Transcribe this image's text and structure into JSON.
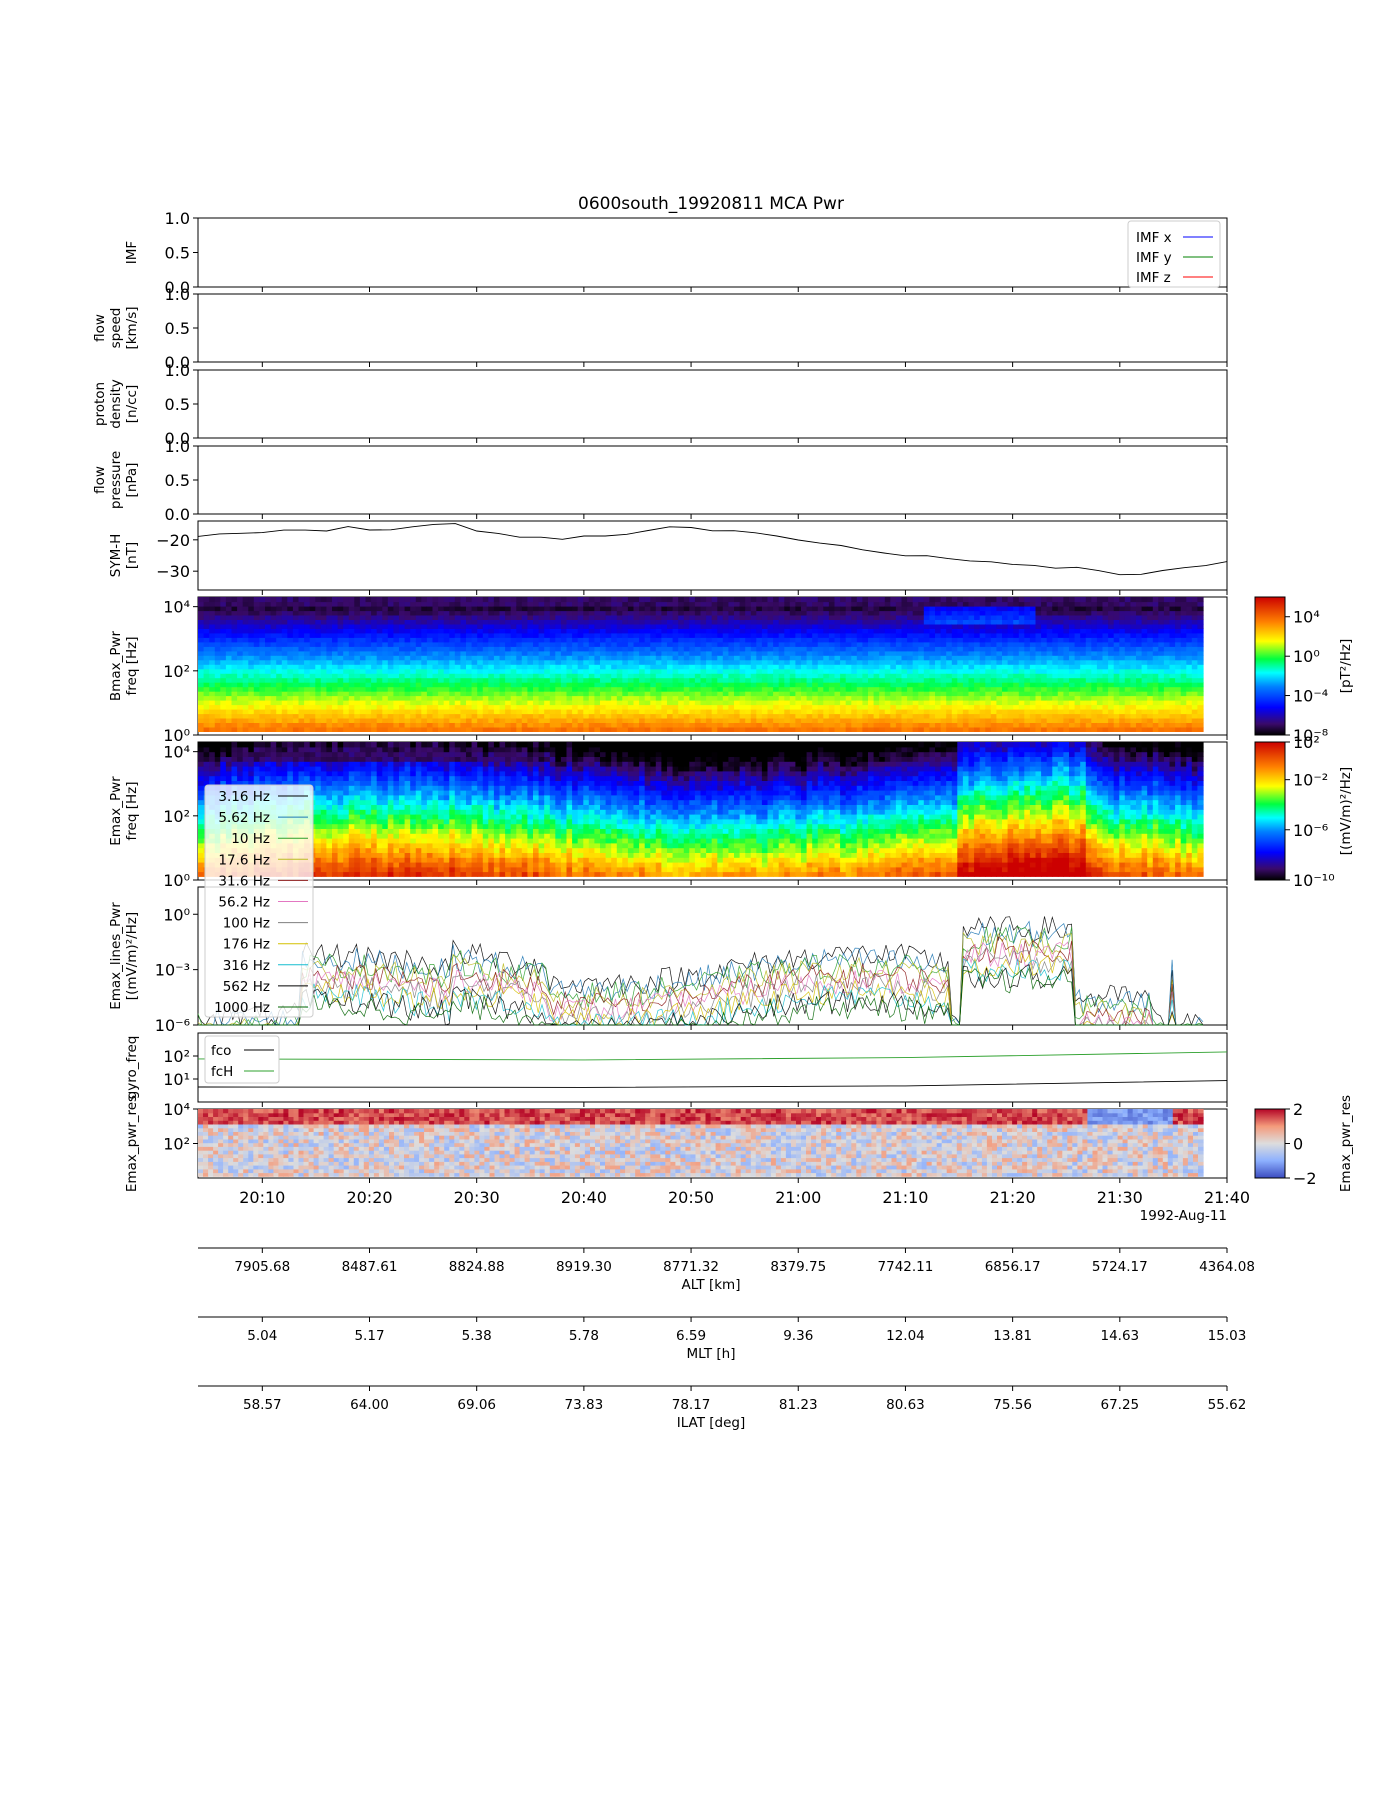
{
  "figure": {
    "title": "0600south_19920811 MCA Pwr",
    "date_label": "1992-Aug-11"
  },
  "chart_data": [
    {
      "type": "line",
      "panel": "IMF",
      "ylabel": [
        "IMF"
      ],
      "ylim": [
        0.0,
        1.0
      ],
      "yticks": [
        "0.0",
        "0.5",
        "1.0"
      ],
      "legend": "top-right",
      "series": [
        {
          "name": "IMF x",
          "color": "#0000ff",
          "values": []
        },
        {
          "name": "IMF y",
          "color": "#008000",
          "values": []
        },
        {
          "name": "IMF z",
          "color": "#ff0000",
          "values": []
        }
      ]
    },
    {
      "type": "line",
      "panel": "flow speed",
      "ylabel": [
        "flow",
        "speed",
        "[km/s]"
      ],
      "ylim": [
        0.0,
        1.0
      ],
      "yticks": [
        "0.0",
        "0.5",
        "1.0"
      ],
      "series": []
    },
    {
      "type": "line",
      "panel": "proton density",
      "ylabel": [
        "proton",
        "density",
        "[n/cc]"
      ],
      "ylim": [
        0.0,
        1.0
      ],
      "yticks": [
        "0.0",
        "0.5",
        "1.0"
      ],
      "series": []
    },
    {
      "type": "line",
      "panel": "flow pressure",
      "ylabel": [
        "flow",
        "pressure",
        "[nPa]"
      ],
      "ylim": [
        0.0,
        1.0
      ],
      "yticks": [
        "0.0",
        "0.5",
        "1.0"
      ],
      "series": []
    },
    {
      "type": "line",
      "panel": "SYM-H",
      "ylabel": [
        "SYM-H",
        "[nT]"
      ],
      "ylim": [
        -36,
        -14
      ],
      "yticks": [
        "−20",
        "−30"
      ],
      "series": [
        {
          "color": "#000000",
          "x": [
            "20:04",
            "20:06",
            "20:08",
            "20:10",
            "20:12",
            "20:14",
            "20:16",
            "20:18",
            "20:20",
            "20:22",
            "20:24",
            "20:26",
            "20:28",
            "20:30",
            "20:32",
            "20:34",
            "20:36",
            "20:38",
            "20:40",
            "20:42",
            "20:44",
            "20:46",
            "20:48",
            "20:50",
            "20:52",
            "20:54",
            "20:56",
            "20:58",
            "21:00",
            "21:02",
            "21:04",
            "21:06",
            "21:08",
            "21:10",
            "21:12",
            "21:14",
            "21:16",
            "21:18",
            "21:20",
            "21:22",
            "21:24",
            "21:26",
            "21:28",
            "21:30",
            "21:32",
            "21:34",
            "21:36",
            "21:38",
            "21:40"
          ],
          "values": [
            -19,
            -18,
            -18,
            -18,
            -17,
            -17,
            -17,
            -16,
            -17,
            -17,
            -16,
            -15,
            -15,
            -17,
            -18,
            -19,
            -19,
            -20,
            -19,
            -19,
            -18,
            -17,
            -16,
            -16,
            -17,
            -17,
            -18,
            -19,
            -20,
            -21,
            -22,
            -23,
            -24,
            -25,
            -25,
            -26,
            -27,
            -27,
            -28,
            -28,
            -29,
            -29,
            -30,
            -31,
            -31,
            -30,
            -29,
            -28,
            -27
          ]
        }
      ]
    },
    {
      "type": "heatmap",
      "panel": "Bmax_Pwr",
      "ylabel": [
        "Bmax_Pwr",
        "freq [Hz]"
      ],
      "yscale": "log",
      "ylim": [
        1,
        20000
      ],
      "yticks": [
        "10⁰",
        "10²",
        "10⁴"
      ],
      "colormap": "jet",
      "colorbar": {
        "label": "[pT²/Hz]",
        "scale": "log",
        "range": [
          1e-08,
          1000000.0
        ],
        "ticks": [
          "10⁻⁸",
          "10⁻⁴",
          "10⁰",
          "10⁴"
        ]
      }
    },
    {
      "type": "heatmap",
      "panel": "Emax_Pwr",
      "ylabel": [
        "Emax_Pwr",
        "freq [Hz]"
      ],
      "yscale": "log",
      "ylim": [
        1,
        20000
      ],
      "yticks": [
        "10⁰",
        "10²",
        "10⁴"
      ],
      "colormap": "jet",
      "colorbar": {
        "label": "[(mV/m)²/Hz]",
        "scale": "log",
        "range": [
          1e-10,
          10
        ],
        "ticks": [
          "10⁻¹⁰",
          "10⁻⁶",
          "10⁻²",
          "10²"
        ]
      }
    },
    {
      "type": "line",
      "panel": "Emax_lines_Pwr",
      "ylabel": [
        "Emax_lines_Pwr",
        "[(mV/m)²/Hz]"
      ],
      "yscale": "log",
      "ylim": [
        1e-06,
        30
      ],
      "yticks": [
        "10⁻⁶",
        "10⁻³",
        "10⁰"
      ],
      "legend": "left",
      "series": [
        {
          "name": "3.16 Hz",
          "color": "#000000"
        },
        {
          "name": "5.62 Hz",
          "color": "#1f77b4"
        },
        {
          "name": "10 Hz",
          "color": "#2ca02c"
        },
        {
          "name": "17.6 Hz",
          "color": "#bcbd22"
        },
        {
          "name": "31.6 Hz",
          "color": "#8c1a1a"
        },
        {
          "name": "56.2 Hz",
          "color": "#e377c2"
        },
        {
          "name": "100 Hz",
          "color": "#7f7f7f"
        },
        {
          "name": "176 Hz",
          "color": "#d4c000"
        },
        {
          "name": "316 Hz",
          "color": "#17becf"
        },
        {
          "name": "562 Hz",
          "color": "#000000"
        },
        {
          "name": "1000 Hz",
          "color": "#006400"
        }
      ]
    },
    {
      "type": "line",
      "panel": "gyro_freq",
      "ylabel": [
        "gyro_freq"
      ],
      "yscale": "log",
      "ylim": [
        1,
        1000
      ],
      "yticks": [
        "10¹",
        "10²"
      ],
      "legend": "top-left",
      "series": [
        {
          "name": "fco",
          "color": "#000000",
          "x": [
            "20:04",
            "20:40",
            "21:10",
            "21:40"
          ],
          "values": [
            4.5,
            4.3,
            5.0,
            8.5
          ]
        },
        {
          "name": "fcH",
          "color": "#2ca02c",
          "x": [
            "20:04",
            "20:40",
            "21:10",
            "21:40"
          ],
          "values": [
            75,
            68,
            85,
            150
          ]
        }
      ]
    },
    {
      "type": "heatmap",
      "panel": "Emax_pwr_res",
      "ylabel": [
        "Emax_pwr_res"
      ],
      "yscale": "log",
      "ylim": [
        1,
        10000
      ],
      "yticks": [
        "10²",
        "10⁴"
      ],
      "colormap": "coolwarm",
      "colorbar": {
        "label": "Emax_pwr_res",
        "scale": "linear",
        "range": [
          -2,
          2
        ],
        "ticks": [
          "−2",
          "0",
          "2"
        ]
      }
    }
  ],
  "time_axis": {
    "range": [
      "20:04",
      "21:40"
    ],
    "ticks": [
      "20:10",
      "20:20",
      "20:30",
      "20:40",
      "20:50",
      "21:00",
      "21:10",
      "21:20",
      "21:30",
      "21:40"
    ]
  },
  "aux_axes": [
    {
      "label": "ALT [km]",
      "values": [
        "7905.68",
        "8487.61",
        "8824.88",
        "8919.30",
        "8771.32",
        "8379.75",
        "7742.11",
        "6856.17",
        "5724.17",
        "4364.08"
      ]
    },
    {
      "label": "MLT [h]",
      "values": [
        "5.04",
        "5.17",
        "5.38",
        "5.78",
        "6.59",
        "9.36",
        "12.04",
        "13.81",
        "14.63",
        "15.03"
      ]
    },
    {
      "label": "ILAT [deg]",
      "values": [
        "58.57",
        "64.00",
        "69.06",
        "73.83",
        "78.17",
        "81.23",
        "80.63",
        "75.56",
        "67.25",
        "55.62"
      ]
    }
  ]
}
